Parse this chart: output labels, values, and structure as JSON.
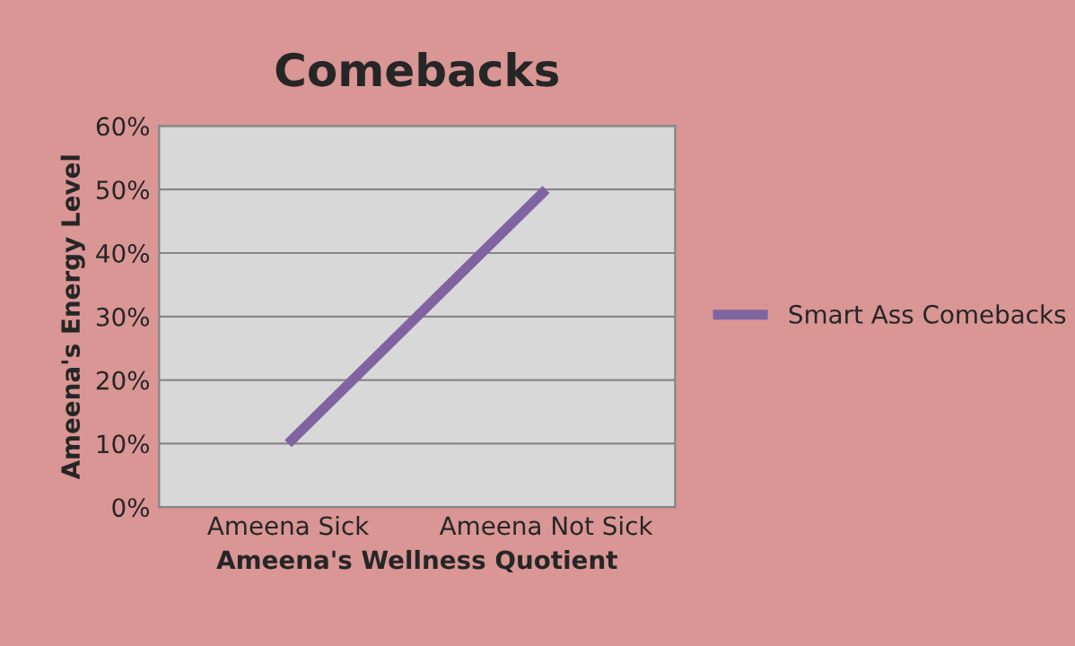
{
  "chart_data": {
    "type": "line",
    "title": "Comebacks",
    "xlabel": "Ameena's Wellness Quotient",
    "ylabel": "Ameena's Energy Level",
    "categories": [
      "Ameena Sick",
      "Ameena Not Sick"
    ],
    "series": [
      {
        "name": "Smart Ass Comebacks",
        "color": "#8064a2",
        "values": [
          10,
          50
        ]
      }
    ],
    "ylim": [
      0,
      60
    ],
    "yticks": [
      {
        "value": 0,
        "label": "0%"
      },
      {
        "value": 10,
        "label": "10%"
      },
      {
        "value": 20,
        "label": "20%"
      },
      {
        "value": 30,
        "label": "30%"
      },
      {
        "value": 40,
        "label": "40%"
      },
      {
        "value": 50,
        "label": "50%"
      },
      {
        "value": 60,
        "label": "60%"
      }
    ],
    "grid": "y",
    "legend": "right",
    "marker": "none",
    "line_style": "solid"
  }
}
